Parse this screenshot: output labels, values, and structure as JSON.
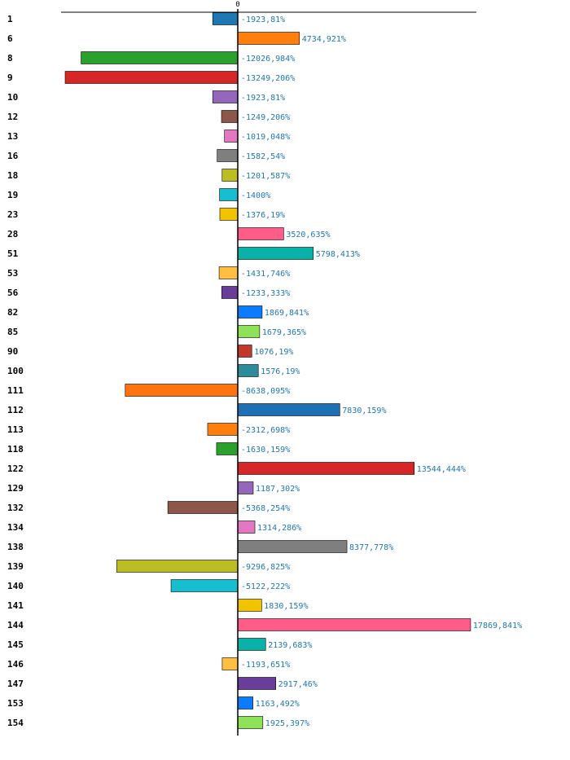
{
  "chart_data": {
    "type": "bar",
    "orientation": "horizontal",
    "zero_tick_label": "0",
    "unit_suffix": "%",
    "categories": [
      "1",
      "6",
      "8",
      "9",
      "10",
      "12",
      "13",
      "16",
      "18",
      "19",
      "23",
      "28",
      "51",
      "53",
      "56",
      "82",
      "85",
      "90",
      "100",
      "111",
      "112",
      "113",
      "118",
      "122",
      "129",
      "132",
      "134",
      "138",
      "139",
      "140",
      "141",
      "144",
      "145",
      "146",
      "147",
      "153",
      "154"
    ],
    "values": [
      -1923.81,
      4734.921,
      -12026.984,
      -13249.206,
      -1923.81,
      -1249.206,
      -1019.048,
      -1582.54,
      -1201.587,
      -1400,
      -1376.19,
      3520.635,
      5798.413,
      -1431.746,
      -1233.333,
      1869.841,
      1679.365,
      1076.19,
      1576.19,
      -8638.095,
      7830.159,
      -2312.698,
      -1630.159,
      13544.444,
      1187.302,
      -5368.254,
      1314.286,
      8377.778,
      -9296.825,
      -5122.222,
      1830.159,
      17869.841,
      2139.683,
      -1193.651,
      2917.46,
      1163.492,
      1925.397
    ],
    "value_labels": [
      "-1923,81%",
      "4734,921%",
      "-12026,984%",
      "-13249,206%",
      "-1923,81%",
      "-1249,206%",
      "-1019,048%",
      "-1582,54%",
      "-1201,587%",
      "-1400%",
      "-1376,19%",
      "3520,635%",
      "5798,413%",
      "-1431,746%",
      "-1233,333%",
      "1869,841%",
      "1679,365%",
      "1076,19%",
      "1576,19%",
      "-8638,095%",
      "7830,159%",
      "-2312,698%",
      "-1630,159%",
      "13544,444%",
      "1187,302%",
      "-5368,254%",
      "1314,286%",
      "8377,778%",
      "-9296,825%",
      "-5122,222%",
      "1830,159%",
      "17869,841%",
      "2139,683%",
      "-1193,651%",
      "2917,46%",
      "1163,492%",
      "1925,397%"
    ],
    "colors": [
      "#1f77b4",
      "#ff7f0e",
      "#2ca02c",
      "#d62728",
      "#9467bd",
      "#8c564b",
      "#e377c2",
      "#7f7f7f",
      "#bcbd22",
      "#17becf",
      "#f2c300",
      "#ff5c8a",
      "#0ab1a8",
      "#ffbf40",
      "#6a3d9a",
      "#0b7cff",
      "#8ee25a",
      "#c0392b",
      "#2e8b9a",
      "#ff7311",
      "#1f6fb4",
      "#ff7f0e",
      "#2ca02c",
      "#d62728",
      "#9467bd",
      "#8c564b",
      "#e377c2",
      "#7f7f7f",
      "#bcbd22",
      "#17becf",
      "#f2c300",
      "#ff5c8a",
      "#0ab1a8",
      "#ffbf40",
      "#6a3d9a",
      "#0b7cff",
      "#8ee25a"
    ],
    "xlim": [
      -14000,
      18500
    ],
    "title": "",
    "xlabel": "",
    "ylabel": ""
  }
}
